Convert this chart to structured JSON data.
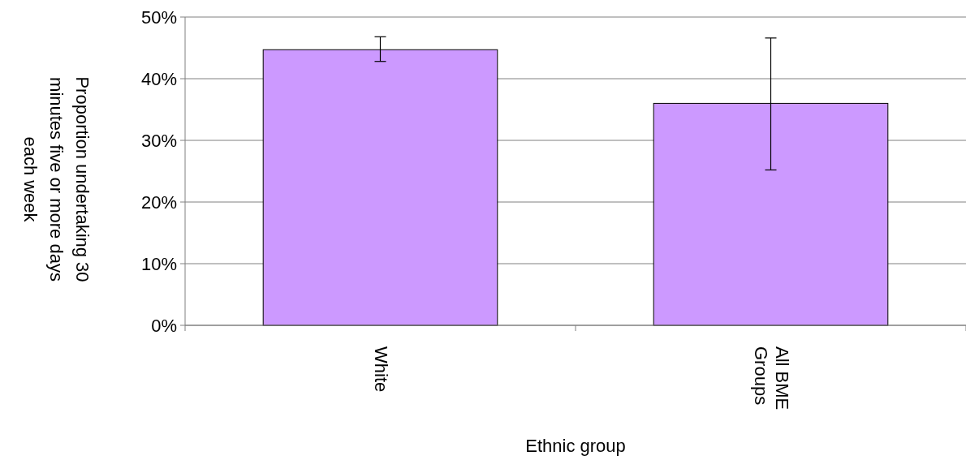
{
  "chart_data": {
    "type": "bar",
    "xlabel": "Ethnic group",
    "ylabel": "Proportion undertaking 30 minutes five or more days each week",
    "categories": [
      "White",
      "All BME Groups"
    ],
    "values": [
      44.7,
      36
    ],
    "errors": [
      [
        42.8,
        46.8
      ],
      [
        25.2,
        46.6
      ]
    ],
    "color": "#cc99ff",
    "ylim": [
      0,
      50
    ],
    "yticks": [
      {
        "value": 0,
        "label": "0%"
      },
      {
        "value": 10,
        "label": "10%"
      },
      {
        "value": 20,
        "label": "20%"
      },
      {
        "value": 30,
        "label": "30%"
      },
      {
        "value": 40,
        "label": "40%"
      },
      {
        "value": 50,
        "label": "50%"
      }
    ],
    "grid": "y"
  }
}
